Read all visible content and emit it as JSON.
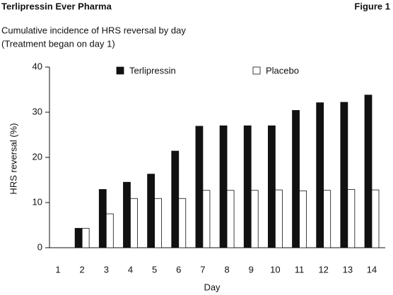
{
  "header": {
    "title": "Terlipressin Ever Pharma",
    "figure": "Figure 1"
  },
  "chart_data": {
    "type": "bar",
    "title": "Cumulative incidence of HRS reversal by day",
    "subtitle": "(Treatment began on day 1)",
    "x_label": "Day",
    "y_label": "HRS reversal (%)",
    "categories": [
      1,
      2,
      3,
      4,
      5,
      6,
      7,
      8,
      9,
      10,
      11,
      12,
      13,
      14
    ],
    "series": [
      {
        "name": "Terlipressin",
        "color": "#111111",
        "values": [
          null,
          4.3,
          12.9,
          14.5,
          16.3,
          21.4,
          26.9,
          27,
          27,
          27,
          30.4,
          32.1,
          32.2,
          33.8
        ]
      },
      {
        "name": "Placebo",
        "color": "#ffffff",
        "values": [
          null,
          4.3,
          7.5,
          10.9,
          10.9,
          10.9,
          12.7,
          12.7,
          12.7,
          12.8,
          12.6,
          12.7,
          12.9,
          12.8
        ]
      }
    ],
    "ylim": [
      0,
      40
    ],
    "yticks": [
      0,
      10,
      20,
      30,
      40
    ],
    "grid": false
  }
}
